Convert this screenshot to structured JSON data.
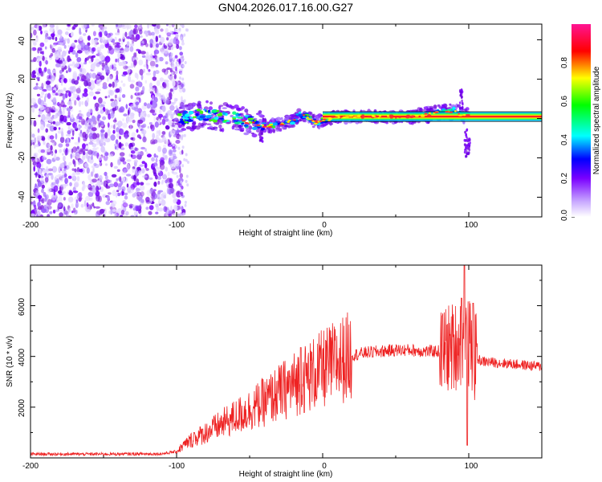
{
  "title": "GN04.2026.017.16.00.G27",
  "chart_data": [
    {
      "type": "heatmap",
      "title": "GN04.2026.017.16.00.G27",
      "xlabel": "Height of straight line (km)",
      "ylabel": "Frequency (Hz)",
      "xlim": [
        -200,
        150
      ],
      "ylim": [
        -50,
        48
      ],
      "xticks": [
        "-200",
        "-100",
        "0",
        "100"
      ],
      "yticks": [
        "-40",
        "-20",
        "0",
        "20",
        "40"
      ],
      "ridge": {
        "heights_km": [
          -100,
          -90,
          -80,
          -70,
          -60,
          -50,
          -40,
          -30,
          -20,
          -15,
          -10,
          -5,
          0,
          10,
          20,
          40,
          60,
          80,
          90,
          95,
          100,
          150
        ],
        "freq_hz": [
          0,
          1,
          2,
          1,
          0,
          -2,
          -4,
          -3,
          -1,
          2,
          1,
          -2,
          -1,
          1,
          1,
          1,
          1,
          3,
          4,
          2,
          1,
          1
        ]
      },
      "colorbar": {
        "label": "Normalized spectral amplitude",
        "range": [
          0,
          1
        ],
        "ticks": [
          "0.0",
          "0.2",
          "0.4",
          "0.6",
          "0.8"
        ],
        "colors": [
          "#ffffff",
          "#8a00ff",
          "#0000ff",
          "#00ffff",
          "#00ff00",
          "#ffff00",
          "#ff0000",
          "#ff0080"
        ]
      }
    },
    {
      "type": "line",
      "xlabel": "Height of straight line (km)",
      "ylabel": "SNR (10 * v/v)",
      "xlim": [
        -200,
        150
      ],
      "ylim": [
        0,
        7600
      ],
      "xticks": [
        "-200",
        "-100",
        "0",
        "100"
      ],
      "yticks": [
        "2000",
        "4000",
        "6000"
      ],
      "color": "#ee2222",
      "envelope": {
        "x": [
          -200,
          -150,
          -110,
          -100,
          -95,
          -90,
          -80,
          -70,
          -60,
          -50,
          -40,
          -30,
          -20,
          -10,
          0,
          10,
          20,
          30,
          40,
          50,
          60,
          70,
          80,
          85,
          90,
          95,
          100,
          105,
          110,
          120,
          130,
          140,
          150
        ],
        "y": [
          150,
          150,
          160,
          250,
          500,
          700,
          1000,
          1300,
          1600,
          1900,
          2200,
          2550,
          2900,
          3200,
          3500,
          3800,
          4050,
          4150,
          4200,
          4250,
          4250,
          4200,
          4200,
          4300,
          4400,
          4600,
          4500,
          3900,
          3800,
          3750,
          3700,
          3650,
          3600
        ]
      },
      "spikes": [
        {
          "x": -15,
          "y": 4350
        },
        {
          "x": -88,
          "y": 1000
        },
        {
          "x": 97,
          "y": 7600
        },
        {
          "x": 95,
          "y": 6300
        },
        {
          "x": 103,
          "y": 6100
        },
        {
          "x": 99,
          "y": 500
        }
      ]
    }
  ]
}
